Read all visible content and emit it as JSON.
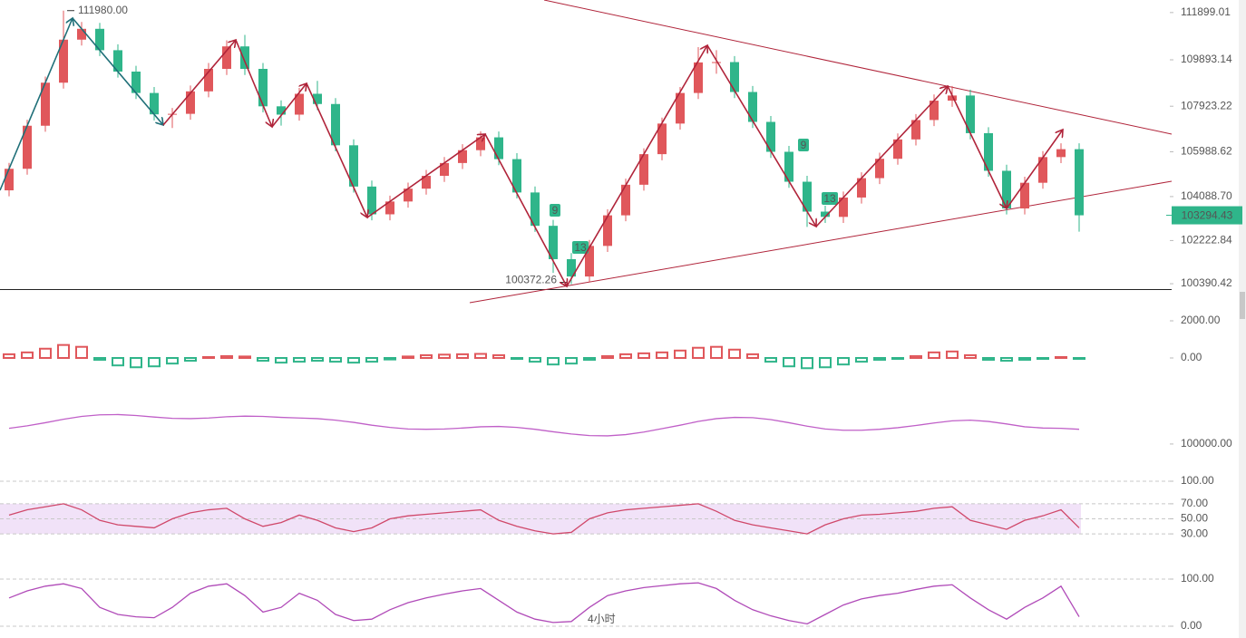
{
  "chart_data": [
    {
      "type": "candlestick",
      "open": [
        104354,
        105268,
        107095,
        108922,
        110748,
        111208,
        110300,
        109393,
        108485,
        107578,
        107600,
        108554,
        109508,
        110462,
        109508,
        107919,
        107566,
        108451,
        108017,
        106265,
        104514,
        103336,
        103880,
        104425,
        104969,
        105513,
        106058,
        106602,
        105678,
        104263,
        102848,
        101433,
        100697,
        101995,
        103293,
        104591,
        105889,
        107187,
        108485,
        109782,
        109796,
        108527,
        107258,
        105989,
        104719,
        103450,
        103227,
        104049,
        104871,
        105693,
        106515,
        107338,
        108160,
        108378,
        106780,
        105183,
        103585,
        104675,
        105765,
        106100
      ],
      "high": [
        105520,
        107350,
        109180,
        111980,
        111500,
        111460,
        110550,
        109640,
        108740,
        107850,
        108800,
        109760,
        110720,
        110950,
        109760,
        108170,
        108700,
        109000,
        108270,
        106520,
        104770,
        104130,
        104680,
        105220,
        105770,
        106310,
        106860,
        106850,
        105930,
        104520,
        103100,
        101690,
        102250,
        103550,
        104850,
        106140,
        107440,
        108740,
        110430,
        110300,
        110050,
        108780,
        107510,
        106240,
        104970,
        103700,
        104300,
        105120,
        105950,
        106770,
        107590,
        108420,
        108780,
        108630,
        107030,
        105440,
        104930,
        106020,
        106350,
        106350
      ],
      "low": [
        104100,
        105020,
        106840,
        108670,
        110500,
        110050,
        109140,
        108230,
        107320,
        107000,
        107350,
        108300,
        109250,
        109250,
        107660,
        107100,
        107310,
        107760,
        106010,
        104260,
        103080,
        103080,
        103620,
        104170,
        104710,
        105260,
        105800,
        105420,
        104010,
        102590,
        100850,
        100372.26,
        100440,
        101740,
        103040,
        104340,
        105630,
        106930,
        108230,
        109300,
        108270,
        107000,
        105730,
        104460,
        102800,
        102970,
        102970,
        103790,
        104620,
        105440,
        106260,
        107080,
        107900,
        106520,
        104930,
        103330,
        103330,
        104420,
        105510,
        102600
      ],
      "close": [
        105268,
        107095,
        108922,
        110748,
        111208,
        110300,
        109393,
        108485,
        107578,
        107600,
        108554,
        109508,
        110462,
        109508,
        107919,
        107566,
        108451,
        108017,
        106265,
        104514,
        103336,
        103880,
        104425,
        104969,
        105513,
        106058,
        106602,
        105678,
        104263,
        102848,
        101433,
        100697,
        101995,
        103293,
        104591,
        105889,
        107187,
        108485,
        109782,
        109796,
        108527,
        107258,
        105989,
        104719,
        103450,
        103227,
        104049,
        104871,
        105693,
        106515,
        107338,
        108160,
        108378,
        106780,
        105183,
        103585,
        104675,
        105765,
        106100,
        103294.43
      ],
      "up_color": "#e0575b",
      "down_color": "#2fb58a",
      "ylim": [
        100124,
        112431
      ],
      "yticks": [
        {
          "value": 111899.01,
          "label": "111899.01"
        },
        {
          "value": 109893.14,
          "label": "109893.14"
        },
        {
          "value": 107923.22,
          "label": "107923.22"
        },
        {
          "value": 105988.62,
          "label": "105988.62"
        },
        {
          "value": 104088.7,
          "label": "104088.70"
        },
        {
          "value": 102222.84,
          "label": "102222.84"
        },
        {
          "value": 100390.42,
          "label": "100390.42"
        }
      ],
      "grid": false,
      "high_label": {
        "value": 111980,
        "label": "111980.00"
      },
      "low_label": {
        "value": 100372.26,
        "label": "100372.26"
      },
      "last_price": {
        "value": 103294.43,
        "label": "103294.43"
      },
      "tags": [
        "9",
        "13",
        "9",
        "13"
      ],
      "timeframe_label": "4小时"
    },
    {
      "type": "bar",
      "values": [
        200,
        300,
        500,
        700,
        600,
        -100,
        -400,
        -500,
        -450,
        -300,
        -150,
        50,
        100,
        80,
        -150,
        -250,
        -200,
        -150,
        -200,
        -250,
        -200,
        -80,
        80,
        150,
        180,
        200,
        220,
        150,
        -50,
        -200,
        -350,
        -300,
        -100,
        100,
        200,
        250,
        300,
        400,
        550,
        600,
        450,
        200,
        -200,
        -450,
        -550,
        -500,
        -350,
        -200,
        -100,
        -50,
        100,
        300,
        350,
        150,
        -100,
        -150,
        -100,
        -50,
        50,
        -50
      ],
      "up_color": "#e0575b",
      "down_color": "#2fb58a",
      "ylim": [
        -1463,
        2683
      ],
      "yticks": [
        {
          "value": 2000,
          "label": "2000.00"
        },
        {
          "value": 0,
          "label": "0.00"
        }
      ],
      "grid": false
    },
    {
      "type": "line",
      "values": [
        105000,
        105800,
        106800,
        107900,
        108800,
        109300,
        109400,
        109100,
        108600,
        108200,
        108100,
        108300,
        108700,
        108900,
        108800,
        108500,
        108300,
        108100,
        107600,
        106900,
        106000,
        105300,
        104800,
        104700,
        104800,
        105100,
        105500,
        105600,
        105300,
        104700,
        103900,
        103200,
        102700,
        102600,
        103000,
        103800,
        104900,
        106000,
        107200,
        108100,
        108500,
        108400,
        107800,
        106800,
        105700,
        104800,
        104400,
        104400,
        104700,
        105200,
        105900,
        106700,
        107400,
        107600,
        107200,
        106400,
        105500,
        105100,
        105000,
        104700
      ],
      "color": "#c060c8",
      "ylim": [
        99400,
        113000
      ],
      "yticks": [
        {
          "value": 100000,
          "label": "100000.00"
        }
      ],
      "grid": false
    },
    {
      "type": "line",
      "values": [
        55,
        62,
        66,
        70,
        62,
        48,
        42,
        40,
        38,
        50,
        58,
        62,
        64,
        50,
        40,
        45,
        55,
        48,
        38,
        33,
        38,
        50,
        54,
        56,
        58,
        60,
        62,
        48,
        40,
        34,
        30,
        32,
        50,
        58,
        62,
        64,
        66,
        68,
        70,
        60,
        48,
        42,
        38,
        34,
        30,
        42,
        50,
        55,
        56,
        58,
        60,
        64,
        66,
        48,
        42,
        36,
        48,
        54,
        62,
        38
      ],
      "color": "#d0486a",
      "ylim": [
        0,
        100
      ],
      "yticks": [
        {
          "value": 100,
          "label": "100.00"
        },
        {
          "value": 70,
          "label": "70.00"
        },
        {
          "value": 50,
          "label": "50.00"
        },
        {
          "value": 30,
          "label": "30.00"
        }
      ],
      "grid": true
    },
    {
      "type": "line",
      "values": [
        60,
        75,
        85,
        90,
        80,
        40,
        25,
        20,
        18,
        40,
        70,
        85,
        90,
        65,
        30,
        40,
        70,
        55,
        25,
        12,
        15,
        35,
        50,
        60,
        68,
        75,
        80,
        55,
        30,
        15,
        8,
        10,
        40,
        65,
        75,
        82,
        86,
        90,
        92,
        80,
        55,
        35,
        22,
        12,
        5,
        25,
        45,
        58,
        65,
        70,
        78,
        85,
        88,
        60,
        35,
        15,
        40,
        60,
        85,
        20
      ],
      "color": "#b04ab8",
      "ylim": [
        0,
        100
      ],
      "yticks": [
        {
          "value": 100,
          "label": "100.00"
        },
        {
          "value": 0,
          "label": "0.00"
        }
      ],
      "grid": true
    }
  ]
}
